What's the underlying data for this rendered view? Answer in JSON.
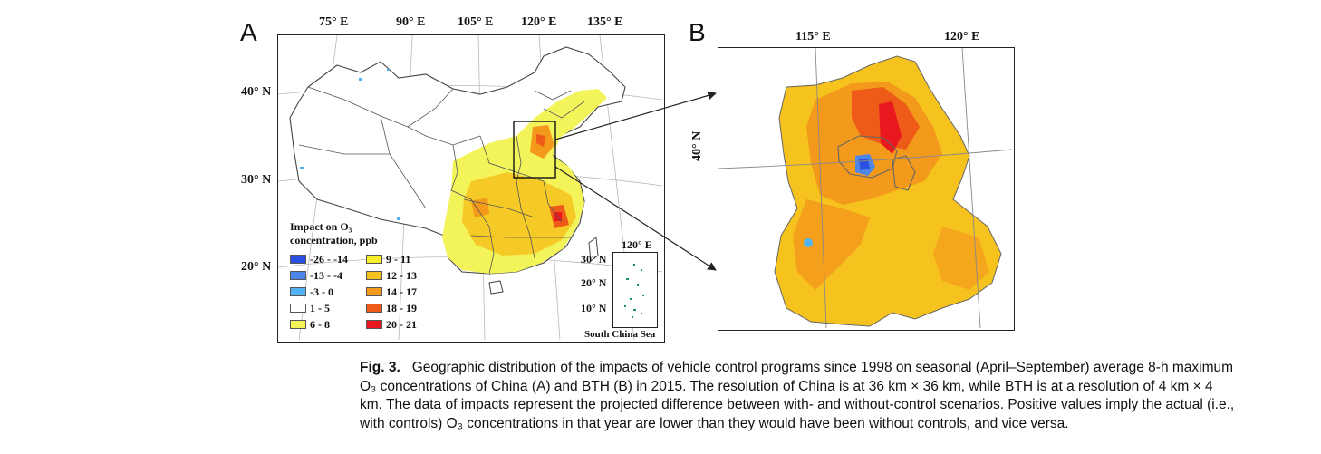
{
  "panels": {
    "A": {
      "letter": "A",
      "lon_labels": [
        "75° E",
        "90° E",
        "105° E",
        "120° E",
        "135° E"
      ],
      "lat_labels": [
        "40° N",
        "30° N",
        "20° N"
      ],
      "legend": {
        "title_line1": "Impact on O₃",
        "title_line2": "concentration, ppb",
        "items": [
          {
            "label": "-26 - -14",
            "color": "#2b4fe0"
          },
          {
            "label": "9 - 11",
            "color": "#f7ef2a"
          },
          {
            "label": "-13 - -4",
            "color": "#4b86e8"
          },
          {
            "label": "12 - 13",
            "color": "#f6c21d"
          },
          {
            "label": "-3 - 0",
            "color": "#51b3f2"
          },
          {
            "label": "14 - 17",
            "color": "#f39a1c"
          },
          {
            "label": "1 - 5",
            "color": "#ffffff"
          },
          {
            "label": "18 - 19",
            "color": "#ee5a17"
          },
          {
            "label": "6 - 8",
            "color": "#f3f35a"
          },
          {
            "label": "20 - 21",
            "color": "#e8181e"
          }
        ]
      },
      "inset": {
        "lon_label": "120° E",
        "lat_labels": [
          "30° N",
          "20° N",
          "10° N"
        ],
        "sea_label": "South China Sea"
      }
    },
    "B": {
      "letter": "B",
      "lon_labels": [
        "115° E",
        "120° E"
      ],
      "lat_label": "40° N"
    }
  },
  "caption": {
    "fig_label": "Fig. 3.",
    "text": "Geographic distribution of the impacts of vehicle control programs since 1998 on seasonal (April–September) average 8-h maximum O₃ concentrations of China (A) and BTH (B) in 2015. The resolution of China is at 36 km × 36 km, while BTH is at a resolution of 4 km × 4 km. The data of impacts represent the projected difference between with- and without-control scenarios. Positive values imply the actual (i.e., with controls) O₃ concentrations in that year are lower than they would have been without controls, and vice versa."
  }
}
